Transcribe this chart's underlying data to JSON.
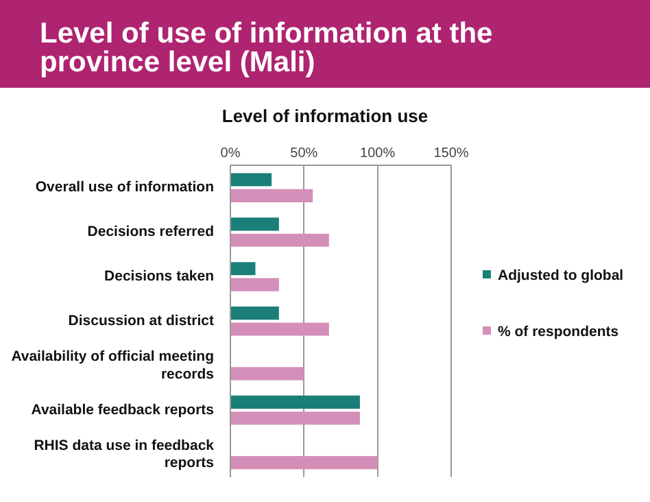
{
  "chart_data": {
    "type": "bar",
    "orientation": "horizontal",
    "title": "Level of use of information at the province level (Mali)",
    "subtitle": "Level of information use",
    "categories": [
      "Overall use of information",
      "Decisions referred",
      "Decisions taken",
      "Discussion at district",
      "Availability of official meeting records",
      "Available feedback reports",
      "RHIS data use in feedback reports"
    ],
    "series": [
      {
        "name": "Adjusted to global",
        "color": "#1a7f78",
        "values": [
          28,
          33,
          17,
          33,
          null,
          88,
          null
        ]
      },
      {
        "name": "% of respondents",
        "color": "#d48fb8",
        "values": [
          56,
          67,
          33,
          67,
          50,
          88,
          100
        ]
      }
    ],
    "xlim": [
      0,
      150
    ],
    "xticks": [
      {
        "value": 0,
        "label": "0%"
      },
      {
        "value": 50,
        "label": "50%"
      },
      {
        "value": 100,
        "label": "100%"
      },
      {
        "value": 150,
        "label": "150%"
      }
    ],
    "grid": "x",
    "legend": "right"
  }
}
